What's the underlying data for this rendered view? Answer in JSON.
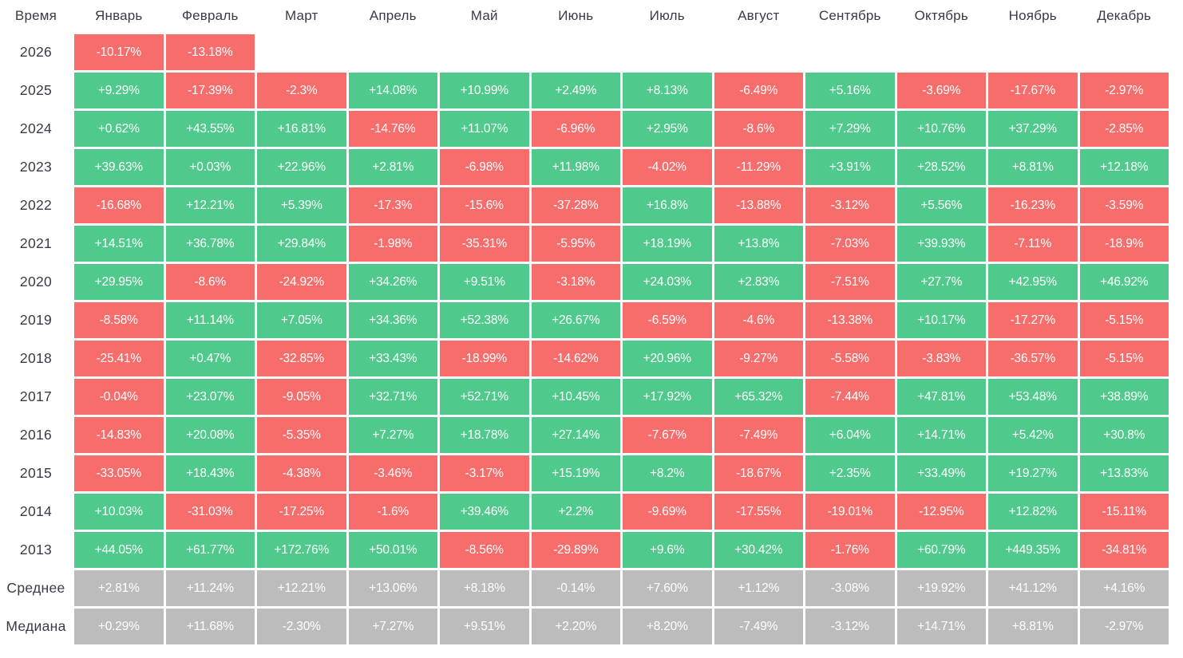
{
  "colors": {
    "positive": "#4fca8c",
    "negative": "#f66d6c",
    "summary": "#bcbcbc",
    "cell_text": "#ffffff",
    "label_text": "#363b47",
    "background": "#ffffff"
  },
  "chart_data": {
    "type": "heatmap",
    "row_header": "Время",
    "columns": [
      "Январь",
      "Февраль",
      "Март",
      "Апрель",
      "Май",
      "Июнь",
      "Июль",
      "Август",
      "Сентябрь",
      "Октябрь",
      "Ноябрь",
      "Декабрь"
    ],
    "legend": "green = positive monthly return, red = negative monthly return, gray = summary rows",
    "rows": [
      {
        "label": "2026",
        "summary": false,
        "values": [
          "-10.17%",
          "-13.18%",
          null,
          null,
          null,
          null,
          null,
          null,
          null,
          null,
          null,
          null
        ]
      },
      {
        "label": "2025",
        "summary": false,
        "values": [
          "+9.29%",
          "-17.39%",
          "-2.3%",
          "+14.08%",
          "+10.99%",
          "+2.49%",
          "+8.13%",
          "-6.49%",
          "+5.16%",
          "-3.69%",
          "-17.67%",
          "-2.97%"
        ]
      },
      {
        "label": "2024",
        "summary": false,
        "values": [
          "+0.62%",
          "+43.55%",
          "+16.81%",
          "-14.76%",
          "+11.07%",
          "-6.96%",
          "+2.95%",
          "-8.6%",
          "+7.29%",
          "+10.76%",
          "+37.29%",
          "-2.85%"
        ]
      },
      {
        "label": "2023",
        "summary": false,
        "values": [
          "+39.63%",
          "+0.03%",
          "+22.96%",
          "+2.81%",
          "-6.98%",
          "+11.98%",
          "-4.02%",
          "-11.29%",
          "+3.91%",
          "+28.52%",
          "+8.81%",
          "+12.18%"
        ]
      },
      {
        "label": "2022",
        "summary": false,
        "values": [
          "-16.68%",
          "+12.21%",
          "+5.39%",
          "-17.3%",
          "-15.6%",
          "-37.28%",
          "+16.8%",
          "-13.88%",
          "-3.12%",
          "+5.56%",
          "-16.23%",
          "-3.59%"
        ]
      },
      {
        "label": "2021",
        "summary": false,
        "values": [
          "+14.51%",
          "+36.78%",
          "+29.84%",
          "-1.98%",
          "-35.31%",
          "-5.95%",
          "+18.19%",
          "+13.8%",
          "-7.03%",
          "+39.93%",
          "-7.11%",
          "-18.9%"
        ]
      },
      {
        "label": "2020",
        "summary": false,
        "values": [
          "+29.95%",
          "-8.6%",
          "-24.92%",
          "+34.26%",
          "+9.51%",
          "-3.18%",
          "+24.03%",
          "+2.83%",
          "-7.51%",
          "+27.7%",
          "+42.95%",
          "+46.92%"
        ]
      },
      {
        "label": "2019",
        "summary": false,
        "values": [
          "-8.58%",
          "+11.14%",
          "+7.05%",
          "+34.36%",
          "+52.38%",
          "+26.67%",
          "-6.59%",
          "-4.6%",
          "-13.38%",
          "+10.17%",
          "-17.27%",
          "-5.15%"
        ]
      },
      {
        "label": "2018",
        "summary": false,
        "values": [
          "-25.41%",
          "+0.47%",
          "-32.85%",
          "+33.43%",
          "-18.99%",
          "-14.62%",
          "+20.96%",
          "-9.27%",
          "-5.58%",
          "-3.83%",
          "-36.57%",
          "-5.15%"
        ]
      },
      {
        "label": "2017",
        "summary": false,
        "values": [
          "-0.04%",
          "+23.07%",
          "-9.05%",
          "+32.71%",
          "+52.71%",
          "+10.45%",
          "+17.92%",
          "+65.32%",
          "-7.44%",
          "+47.81%",
          "+53.48%",
          "+38.89%"
        ]
      },
      {
        "label": "2016",
        "summary": false,
        "values": [
          "-14.83%",
          "+20.08%",
          "-5.35%",
          "+7.27%",
          "+18.78%",
          "+27.14%",
          "-7.67%",
          "-7.49%",
          "+6.04%",
          "+14.71%",
          "+5.42%",
          "+30.8%"
        ]
      },
      {
        "label": "2015",
        "summary": false,
        "values": [
          "-33.05%",
          "+18.43%",
          "-4.38%",
          "-3.46%",
          "-3.17%",
          "+15.19%",
          "+8.2%",
          "-18.67%",
          "+2.35%",
          "+33.49%",
          "+19.27%",
          "+13.83%"
        ]
      },
      {
        "label": "2014",
        "summary": false,
        "values": [
          "+10.03%",
          "-31.03%",
          "-17.25%",
          "-1.6%",
          "+39.46%",
          "+2.2%",
          "-9.69%",
          "-17.55%",
          "-19.01%",
          "-12.95%",
          "+12.82%",
          "-15.11%"
        ]
      },
      {
        "label": "2013",
        "summary": false,
        "values": [
          "+44.05%",
          "+61.77%",
          "+172.76%",
          "+50.01%",
          "-8.56%",
          "-29.89%",
          "+9.6%",
          "+30.42%",
          "-1.76%",
          "+60.79%",
          "+449.35%",
          "-34.81%"
        ]
      },
      {
        "label": "Среднее",
        "summary": true,
        "values": [
          "+2.81%",
          "+11.24%",
          "+12.21%",
          "+13.06%",
          "+8.18%",
          "-0.14%",
          "+7.60%",
          "+1.12%",
          "-3.08%",
          "+19.92%",
          "+41.12%",
          "+4.16%"
        ]
      },
      {
        "label": "Медиана",
        "summary": true,
        "values": [
          "+0.29%",
          "+11.68%",
          "-2.30%",
          "+7.27%",
          "+9.51%",
          "+2.20%",
          "+8.20%",
          "-7.49%",
          "-3.12%",
          "+14.71%",
          "+8.81%",
          "-2.97%"
        ]
      }
    ]
  }
}
